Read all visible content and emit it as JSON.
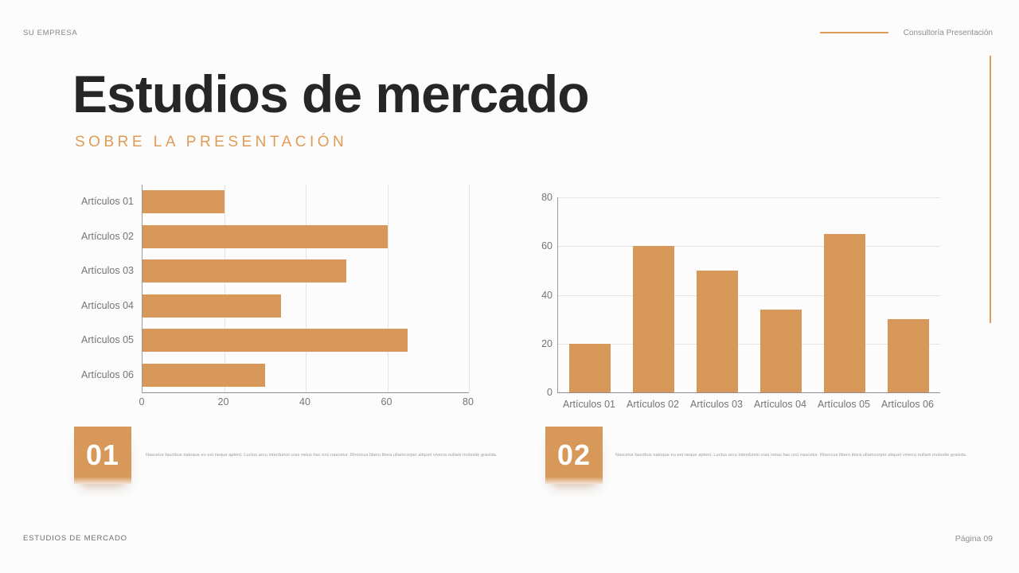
{
  "header": {
    "company": "SU EMPRESA",
    "tagline": "Consultoría Presentación"
  },
  "title": "Estudios de mercado",
  "subtitle": "SOBRE LA PRESENTACIÓN",
  "sections": [
    {
      "number": "01",
      "text": "Nascetur faucibus natoque eu est neque aptent. Luctus arcu interdumsi cras netus hac orci nascetur. Rhoncus libero litora ullamcorper aliquet viverra nullam molestie gravida."
    },
    {
      "number": "02",
      "text": "Nascetur faucibus natoque eu est neque aptent. Luctus arcu interdumsi cras netus hac orci nascetur. Rhoncus libero litora ullamcorper aliquet viverra nullam molestie gravida."
    }
  ],
  "footer": {
    "left": "ESTUDIOS DE MERCADO",
    "right": "Página 09"
  },
  "colors": {
    "accent": "#dd9c58",
    "bar": "#d8985a",
    "title_text": "#262626",
    "muted_text": "#757575",
    "gridline": "#e4e4e4",
    "axis": "#8e8e8e"
  },
  "chart_data": [
    {
      "type": "bar",
      "orientation": "horizontal",
      "title": "",
      "categories": [
        "Artículos 01",
        "Artículos 02",
        "Artículos 03",
        "Artículos 04",
        "Artículos 05",
        "Artículos 06"
      ],
      "values": [
        20,
        60,
        50,
        34,
        65,
        30
      ],
      "xlabel": "",
      "ylabel": "",
      "xlim": [
        0,
        80
      ],
      "xticks": [
        0,
        20,
        40,
        60,
        80
      ],
      "grid": true,
      "legend": false,
      "bar_color": "#d8985a"
    },
    {
      "type": "bar",
      "orientation": "vertical",
      "title": "",
      "categories": [
        "Artículos 01",
        "Artículos 02",
        "Artículos 03",
        "Artículos 04",
        "Artículos 05",
        "Artículos 06"
      ],
      "values": [
        20,
        60,
        50,
        34,
        65,
        30
      ],
      "xlabel": "",
      "ylabel": "",
      "ylim": [
        0,
        80
      ],
      "yticks": [
        0,
        20,
        40,
        60,
        80
      ],
      "grid": true,
      "legend": false,
      "bar_color": "#d8985a"
    }
  ]
}
